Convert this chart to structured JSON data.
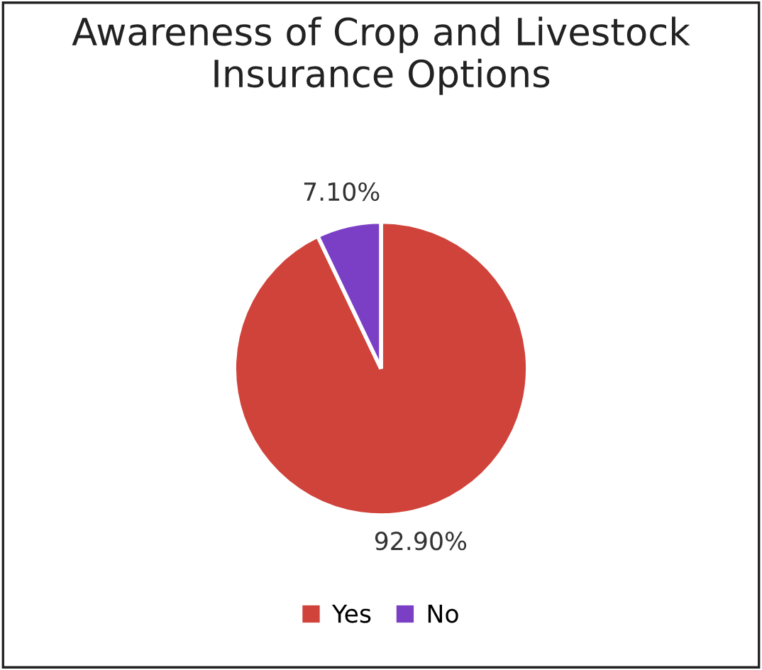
{
  "chart_data": {
    "type": "pie",
    "title": "Awareness of Crop and Livestock Insurance Options",
    "categories": [
      "Yes",
      "No"
    ],
    "values": [
      92.9,
      7.1
    ],
    "colors": [
      "#d0433b",
      "#7b3fc6"
    ],
    "value_labels": [
      "92.90%",
      "7.10%"
    ],
    "legend": "bottom"
  }
}
